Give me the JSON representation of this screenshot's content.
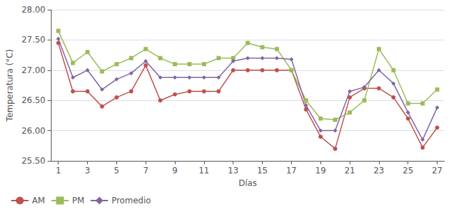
{
  "chart_data": {
    "type": "line",
    "xlabel": "Días",
    "ylabel": "Temperatura (°C)",
    "x": [
      1,
      2,
      3,
      4,
      5,
      6,
      7,
      8,
      9,
      10,
      11,
      12,
      13,
      14,
      15,
      16,
      17,
      18,
      19,
      20,
      21,
      22,
      23,
      24,
      25,
      26,
      27
    ],
    "series": [
      {
        "name": "AM",
        "color": "#c0504d",
        "marker": "circle",
        "values": [
          27.45,
          26.65,
          26.65,
          26.4,
          26.55,
          26.65,
          27.08,
          26.5,
          26.6,
          26.65,
          26.65,
          26.65,
          27.0,
          27.0,
          27.0,
          27.0,
          27.0,
          26.35,
          25.9,
          25.7,
          26.55,
          26.7,
          26.7,
          26.55,
          26.2,
          25.72,
          26.05
        ]
      },
      {
        "name": "PM",
        "color": "#9bbb59",
        "marker": "square",
        "values": [
          27.65,
          27.12,
          27.3,
          26.98,
          27.1,
          27.2,
          27.35,
          27.2,
          27.1,
          27.1,
          27.1,
          27.2,
          27.2,
          27.45,
          27.38,
          27.35,
          27.0,
          26.5,
          26.2,
          26.18,
          26.3,
          26.5,
          27.35,
          27.0,
          26.45,
          26.45,
          26.68
        ]
      },
      {
        "name": "Promedio",
        "color": "#8064a2",
        "marker": "diamond",
        "values": [
          27.52,
          26.88,
          27.0,
          26.68,
          26.85,
          26.95,
          27.15,
          26.88,
          26.88,
          26.88,
          26.88,
          26.88,
          27.15,
          27.2,
          27.2,
          27.2,
          27.18,
          26.42,
          26.0,
          26.0,
          26.65,
          26.72,
          27.0,
          26.78,
          26.3,
          25.85,
          26.38
        ]
      }
    ],
    "xlim": [
      0.5,
      27.5
    ],
    "xticks": [
      1,
      3,
      5,
      7,
      9,
      11,
      13,
      15,
      17,
      19,
      21,
      23,
      25,
      27
    ],
    "ylim": [
      25.5,
      28.0
    ],
    "yticks": [
      {
        "value": 25.5,
        "label": "25.50"
      },
      {
        "value": 26.0,
        "label": "26.00"
      },
      {
        "value": 26.5,
        "label": "26.50"
      },
      {
        "value": 27.0,
        "label": "27.00"
      },
      {
        "value": 27.5,
        "label": "27.50"
      },
      {
        "value": 28.0,
        "label": "28.00"
      }
    ],
    "grid": true,
    "legend": "lower left"
  }
}
